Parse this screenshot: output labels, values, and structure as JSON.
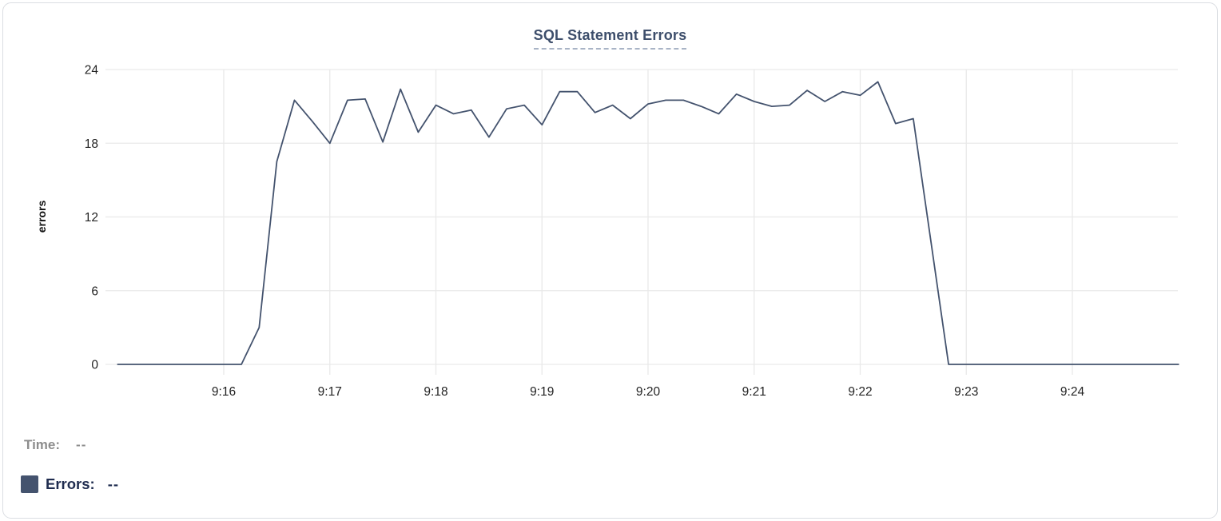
{
  "theme": {
    "card_border": "#dadde2",
    "title": "#3d4e6b",
    "title_underline": "#a9b4c6",
    "grid": "#e9e9e9",
    "tick_text": "#232323",
    "series_navy": "#44536e",
    "time_gray": "#8d8d8d",
    "errors_navy": "#1f2c4f"
  },
  "readout": {
    "time_label": "Time:",
    "time_value": "--",
    "errors_label": "Errors:",
    "errors_value": "--"
  },
  "chart_data": {
    "type": "line",
    "title": "SQL Statement Errors",
    "xlabel": "",
    "ylabel": "errors",
    "x_ticks": [
      "9:16",
      "9:17",
      "9:18",
      "9:19",
      "9:20",
      "9:21",
      "9:22",
      "9:23",
      "9:24"
    ],
    "y_ticks": [
      0,
      6,
      12,
      18,
      24
    ],
    "ylim": [
      0,
      24
    ],
    "x_range": [
      "9:15:00",
      "9:25:00"
    ],
    "grid": true,
    "legend_position": "bottom-left",
    "series": [
      {
        "name": "Errors",
        "color": "#44536e",
        "sample_interval_seconds": 10,
        "points": [
          [
            "9:15:00",
            0
          ],
          [
            "9:15:10",
            0
          ],
          [
            "9:15:20",
            0
          ],
          [
            "9:15:30",
            0
          ],
          [
            "9:15:40",
            0
          ],
          [
            "9:15:50",
            0
          ],
          [
            "9:16:00",
            0
          ],
          [
            "9:16:10",
            0
          ],
          [
            "9:16:20",
            3
          ],
          [
            "9:16:30",
            16.5
          ],
          [
            "9:16:40",
            21.5
          ],
          [
            "9:16:50",
            19.8
          ],
          [
            "9:17:00",
            18
          ],
          [
            "9:17:10",
            21.5
          ],
          [
            "9:17:20",
            21.6
          ],
          [
            "9:17:30",
            18.1
          ],
          [
            "9:17:40",
            22.4
          ],
          [
            "9:17:50",
            18.9
          ],
          [
            "9:18:00",
            21.1
          ],
          [
            "9:18:10",
            20.4
          ],
          [
            "9:18:20",
            20.7
          ],
          [
            "9:18:30",
            18.5
          ],
          [
            "9:18:40",
            20.8
          ],
          [
            "9:18:50",
            21.1
          ],
          [
            "9:19:00",
            19.5
          ],
          [
            "9:19:10",
            22.2
          ],
          [
            "9:19:20",
            22.2
          ],
          [
            "9:19:30",
            20.5
          ],
          [
            "9:19:40",
            21.1
          ],
          [
            "9:19:50",
            20
          ],
          [
            "9:20:00",
            21.2
          ],
          [
            "9:20:10",
            21.5
          ],
          [
            "9:20:20",
            21.5
          ],
          [
            "9:20:30",
            21
          ],
          [
            "9:20:40",
            20.4
          ],
          [
            "9:20:50",
            22
          ],
          [
            "9:21:00",
            21.4
          ],
          [
            "9:21:10",
            21
          ],
          [
            "9:21:20",
            21.1
          ],
          [
            "9:21:30",
            22.3
          ],
          [
            "9:21:40",
            21.4
          ],
          [
            "9:21:50",
            22.2
          ],
          [
            "9:22:00",
            21.9
          ],
          [
            "9:22:10",
            23
          ],
          [
            "9:22:20",
            19.6
          ],
          [
            "9:22:30",
            20
          ],
          [
            "9:22:40",
            10
          ],
          [
            "9:22:50",
            0
          ],
          [
            "9:23:00",
            0
          ],
          [
            "9:23:10",
            0
          ],
          [
            "9:23:20",
            0
          ],
          [
            "9:23:30",
            0
          ],
          [
            "9:23:40",
            0
          ],
          [
            "9:23:50",
            0
          ],
          [
            "9:24:00",
            0
          ],
          [
            "9:24:10",
            0
          ],
          [
            "9:24:20",
            0
          ],
          [
            "9:24:30",
            0
          ],
          [
            "9:24:40",
            0
          ],
          [
            "9:24:50",
            0
          ],
          [
            "9:25:00",
            0
          ]
        ]
      }
    ]
  }
}
